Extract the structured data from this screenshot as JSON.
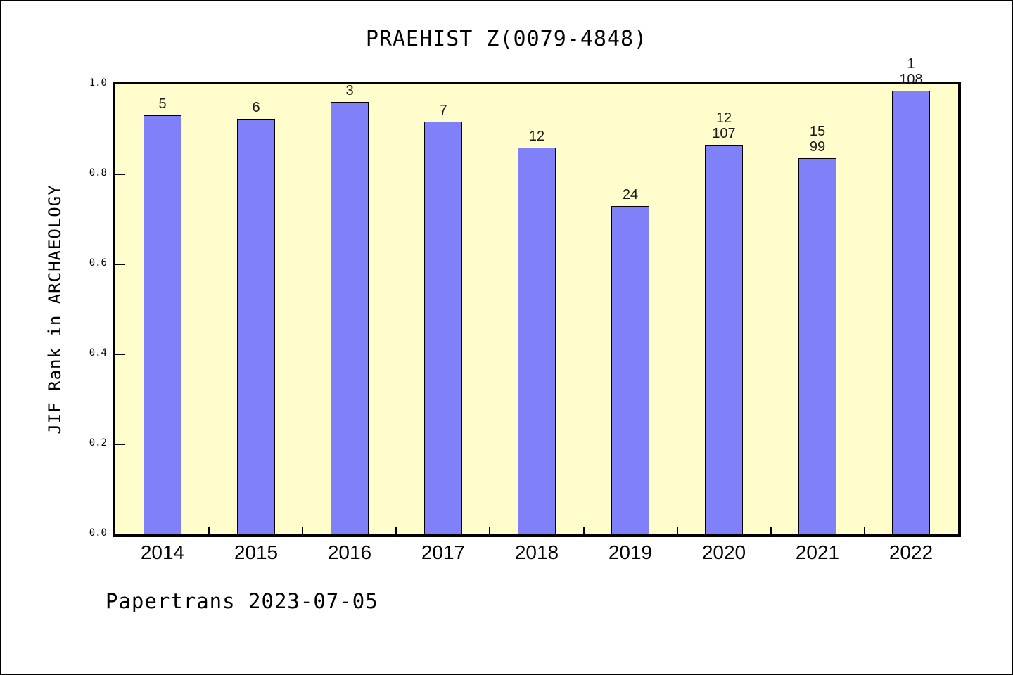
{
  "chart_data": {
    "type": "bar",
    "title": "PRAEHIST Z(0079-4848)",
    "ylabel": "JIF Rank in ARCHAEOLOGY",
    "xlabel": "",
    "footer": "Papertrans 2023-07-05",
    "categories": [
      "2014",
      "2015",
      "2016",
      "2017",
      "2018",
      "2019",
      "2020",
      "2021",
      "2022"
    ],
    "values": [
      0.932,
      0.924,
      0.961,
      0.917,
      0.86,
      0.73,
      0.866,
      0.836,
      0.986
    ],
    "bar_labels": [
      [
        "5"
      ],
      [
        "6"
      ],
      [
        "3"
      ],
      [
        "7"
      ],
      [
        "12"
      ],
      [
        "24"
      ],
      [
        "12",
        "107"
      ],
      [
        "15",
        "99"
      ],
      [
        "1",
        "108"
      ]
    ],
    "ylim": [
      0.0,
      1.0
    ],
    "yticks": [
      1.0,
      0.8,
      0.6,
      0.4,
      0.2,
      0.0
    ],
    "ytick_labels": [
      "1.0",
      "0.8",
      "0.6",
      "0.4",
      "0.2",
      "0.0"
    ],
    "grid": false,
    "legend": null,
    "colors": {
      "bar_fill": "#8080f8",
      "bar_edge": "#000000",
      "plot_background": "#fffdcc",
      "frame": "#000000",
      "page_background": "#ffffff"
    }
  }
}
